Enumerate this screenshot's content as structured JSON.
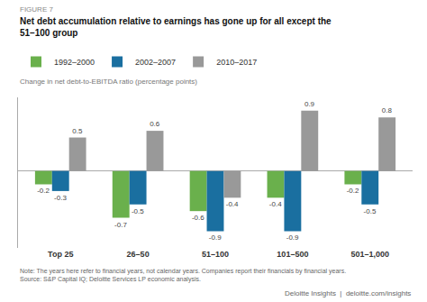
{
  "chart_data": {
    "type": "bar",
    "title": "Net debt accumulation relative to earnings has gone up for all except the\n51–100 group",
    "ylabel": "Change in net debt-to-EBITDA ratio (percentage points)",
    "annotations": [
      "FIGURE 7",
      "Note: The years here refer to financial years, not calendar years. Companies report their financials by financial years.\nSource: S&P Capital IQ; Deloitte Services LP economic analysis.",
      "Deloitte Insights  |  deloitte.com/insights"
    ],
    "categories": [
      "Top 25",
      "26–50",
      "51–100",
      "101–500",
      "501–1,000"
    ],
    "series": [
      {
        "name": "1992–2000",
        "color": "#6ab04c",
        "values": [
          -0.2,
          -0.7,
          -0.6,
          -0.4,
          -0.2
        ]
      },
      {
        "name": "2002–2007",
        "color": "#1a6fa0",
        "values": [
          -0.3,
          -0.5,
          -0.9,
          -0.9,
          -0.5
        ]
      },
      {
        "name": "2010–2017",
        "color": "#999999",
        "values": [
          0.5,
          0.6,
          -0.4,
          0.9,
          0.8
        ]
      }
    ],
    "ylim": [
      -1.15,
      1.1
    ],
    "tick_labels": "x",
    "grid": false,
    "legend": "top left",
    "data_labels": true
  }
}
